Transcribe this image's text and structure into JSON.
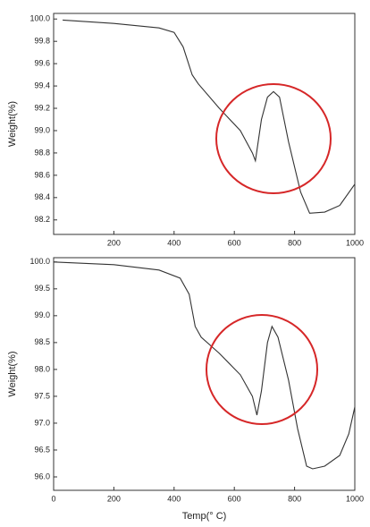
{
  "chart_data": [
    {
      "type": "line",
      "y_label": "Weight(%)",
      "x": [
        30,
        200,
        350,
        400,
        430,
        460,
        480,
        550,
        620,
        660,
        670,
        690,
        710,
        730,
        750,
        780,
        820,
        850,
        900,
        950,
        1000
      ],
      "series": [
        {
          "color": "#333333",
          "values": [
            99.99,
            99.96,
            99.92,
            99.88,
            99.75,
            99.5,
            99.42,
            99.2,
            99.0,
            98.8,
            98.73,
            99.1,
            99.3,
            99.35,
            99.3,
            98.9,
            98.45,
            98.26,
            98.27,
            98.33,
            98.52
          ]
        }
      ],
      "xlim": [
        0,
        1000
      ],
      "xticks": [
        200,
        400,
        600,
        800,
        1000
      ],
      "ylim": [
        98.07,
        100.05
      ],
      "yticks": [
        98.2,
        98.4,
        98.6,
        98.8,
        {
          "value": 99,
          "label": "99.0"
        },
        99.2,
        99.4,
        99.6,
        99.8,
        {
          "value": 100,
          "label": "100.0"
        }
      ]
    },
    {
      "type": "line",
      "y_label": "Weight(%)",
      "x_label": "Temp(° C)",
      "x": [
        0,
        200,
        350,
        420,
        450,
        470,
        490,
        550,
        620,
        660,
        675,
        690,
        710,
        725,
        745,
        780,
        810,
        840,
        860,
        900,
        950,
        980,
        1000
      ],
      "series": [
        {
          "color": "#333333",
          "values": [
            100.0,
            99.95,
            99.85,
            99.7,
            99.4,
            98.8,
            98.6,
            98.3,
            97.9,
            97.5,
            97.15,
            97.6,
            98.5,
            98.8,
            98.6,
            97.8,
            96.9,
            96.2,
            96.15,
            96.2,
            96.4,
            96.8,
            97.3
          ]
        }
      ],
      "xlim": [
        0,
        1000
      ],
      "xticks": [
        0,
        200,
        400,
        600,
        800,
        1000
      ],
      "ylim": [
        95.75,
        100.08
      ],
      "yticks": [
        {
          "value": 96,
          "label": "96.0"
        },
        96.5,
        {
          "value": 97,
          "label": "97.0"
        },
        97.5,
        {
          "value": 98,
          "label": "98.0"
        },
        98.5,
        {
          "value": 99,
          "label": "99.0"
        },
        99.5,
        {
          "value": 100,
          "label": "100.0"
        }
      ]
    }
  ]
}
